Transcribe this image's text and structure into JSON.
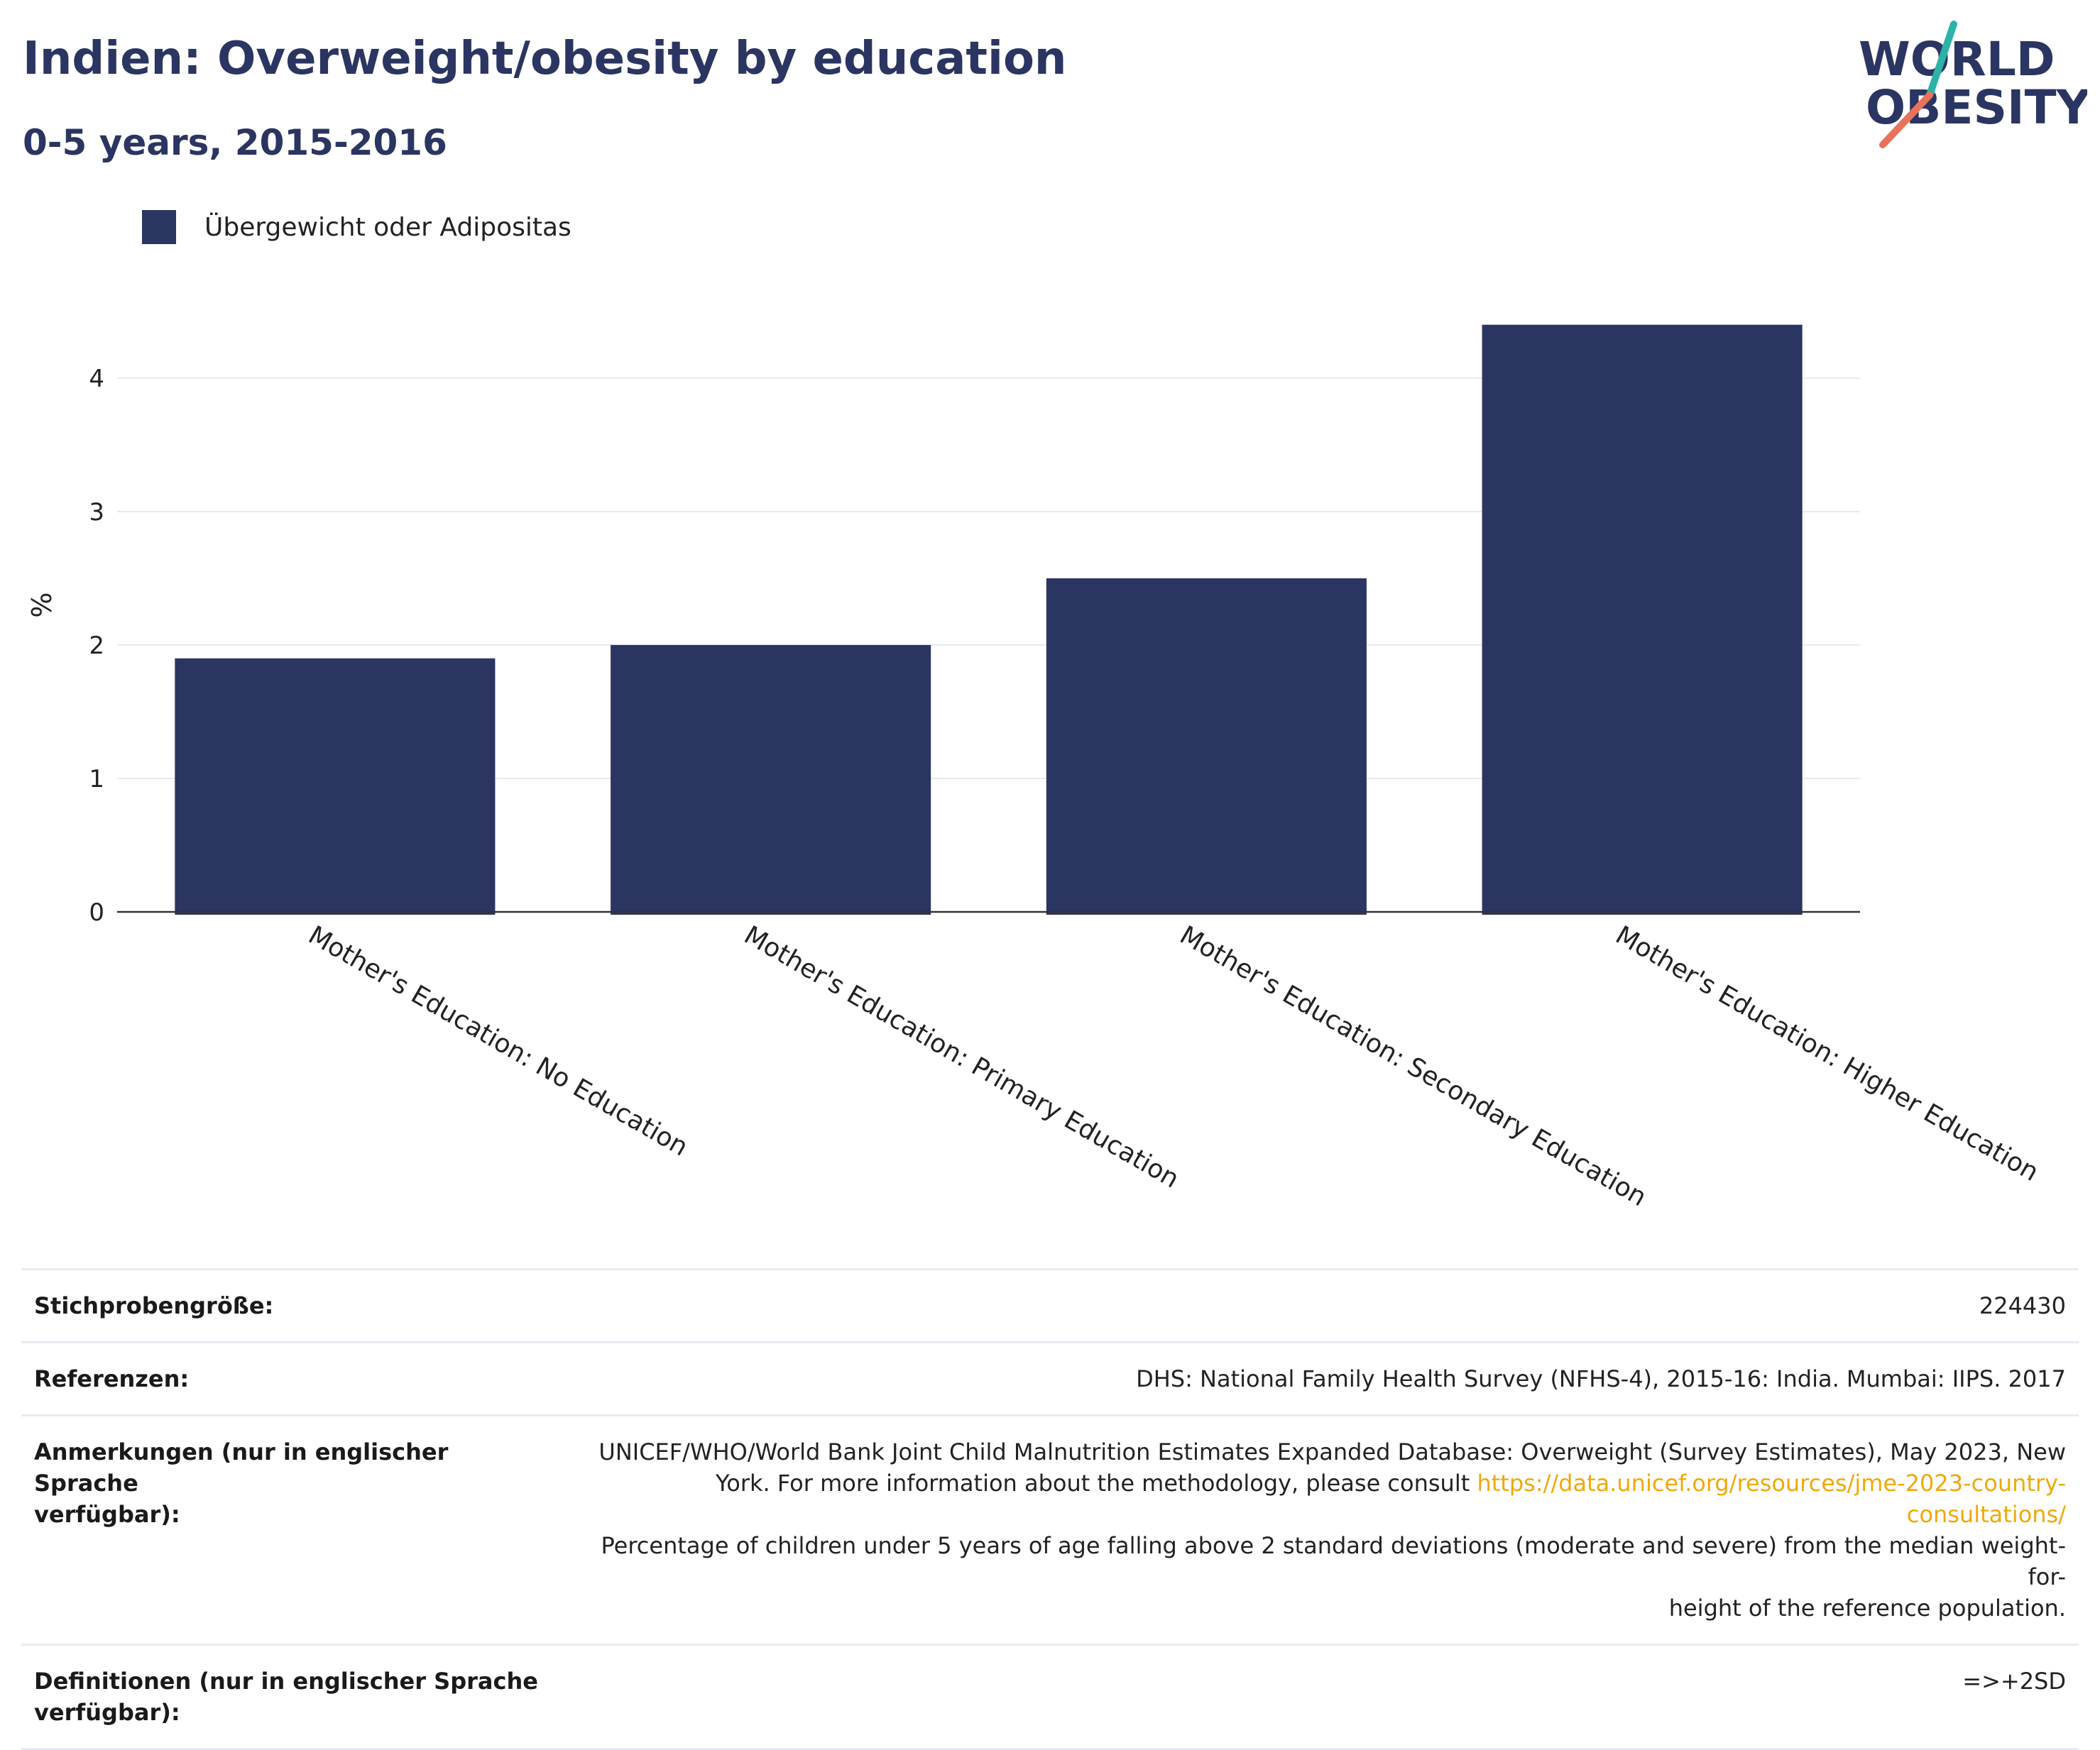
{
  "header": {
    "title": "Indien: Overweight/obesity by education",
    "subtitle": "0-5 years, 2015-2016"
  },
  "logo": {
    "line1": "WORLD",
    "line2": "OBESITY"
  },
  "colors": {
    "bar": "#2b3561",
    "accent_teal": "#2bb3a9",
    "accent_coral": "#e8735a",
    "link": "#f0a90a"
  },
  "chart_data": {
    "type": "bar",
    "categories": [
      "Mother's Education: No Education",
      "Mother's Education: Primary Education",
      "Mother's Education: Secondary Education",
      "Mother's Education: Higher Education"
    ],
    "series": [
      {
        "name": "Übergewicht oder Adipositas",
        "values": [
          1.9,
          2.0,
          2.5,
          4.4
        ]
      }
    ],
    "title": "Indien: Overweight/obesity by education",
    "subtitle": "0-5 years, 2015-2016",
    "xlabel": "",
    "ylabel": "%",
    "ylim": [
      0,
      4.6
    ],
    "yticks": [
      0,
      1,
      2,
      3,
      4
    ],
    "grid": true,
    "legend": "top-left"
  },
  "meta": {
    "sample_label": "Stichprobengröße:",
    "sample_value": "224430",
    "refs_label": "Referenzen:",
    "refs_value": "DHS: National Family Health Survey (NFHS-4), 2015-16: India. Mumbai: IIPS. 2017",
    "notes_label_1": "Anmerkungen (nur in englischer Sprache",
    "notes_label_2": "verfügbar):",
    "notes_line1": "UNICEF/WHO/World Bank Joint Child Malnutrition Estimates Expanded Database: Overweight (Survey Estimates), May 2023, New",
    "notes_line2_pre": "York. For more information about the methodology, please consult ",
    "notes_link": "https://data.unicef.org/resources/jme-2023-country-consultations/",
    "notes_line3": "Percentage of children under 5 years of age falling above 2 standard deviations (moderate and severe) from the median weight-for-",
    "notes_line4": "height of the reference population.",
    "defs_label_1": "Definitionen (nur in englischer Sprache",
    "defs_label_2": "verfügbar):",
    "defs_value": "=>+2SD"
  }
}
